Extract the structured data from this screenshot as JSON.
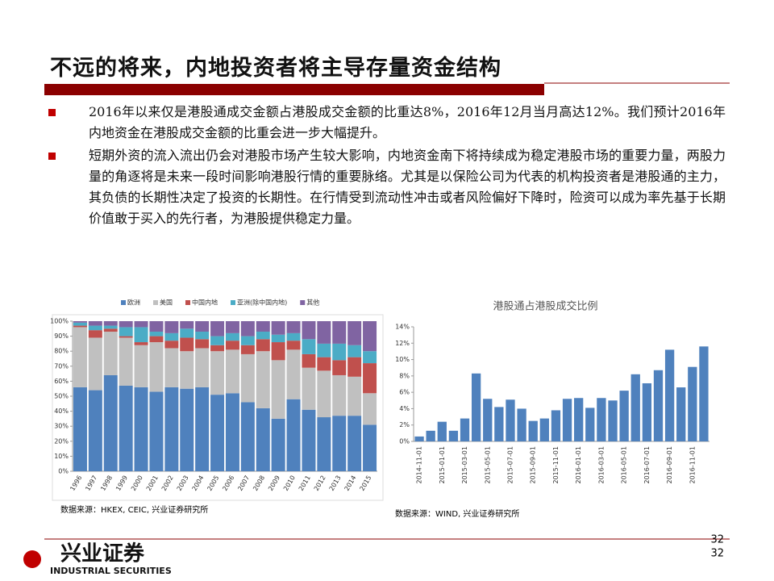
{
  "title": "不远的将来，内地投资者将主导存量资金结构",
  "bullets": [
    "2016年以来仅是港股通成交金额占港股成交金额的比重达8%，2016年12月当月高达12%。我们预计2016年内地资金在港股成交金额的比重会进一步大幅提升。",
    "短期外资的流入流出仍会对港股市场产生较大影响，内地资金南下将持续成为稳定港股市场的重要力量，两股力量的角逐将是未来一段时间影响港股行情的重要脉络。尤其是以保险公司为代表的机构投资者是港股通的主力，其负债的长期性决定了投资的长期性。在行情受到流动性冲击或者风险偏好下降时，险资可以成为率先基于长期价值敢于买入的先行者，为港股提供稳定力量。"
  ],
  "chart_data": [
    {
      "type": "bar",
      "stacked": true,
      "categories": [
        "1996",
        "1997",
        "1998",
        "1999",
        "2000",
        "2001",
        "2002",
        "2003",
        "2004",
        "2005",
        "2006",
        "2007",
        "2008",
        "2009",
        "2010",
        "2011",
        "2012",
        "2013",
        "2014",
        "2015"
      ],
      "series": [
        {
          "name": "欧洲",
          "color": "#4f81bd",
          "values": [
            56,
            54,
            64,
            57,
            56,
            53,
            56,
            55,
            56,
            51,
            52,
            46,
            42,
            35,
            48,
            41,
            36,
            37,
            37,
            31
          ]
        },
        {
          "name": "美国",
          "color": "#c0c0c0",
          "values": [
            40,
            35,
            29,
            32,
            28,
            33,
            26,
            25,
            26,
            29,
            29,
            32,
            38,
            39,
            33,
            28,
            31,
            27,
            26,
            21
          ]
        },
        {
          "name": "中国内地",
          "color": "#c0504d",
          "values": [
            1,
            5,
            2,
            1,
            2,
            4,
            5,
            9,
            6,
            4,
            6,
            6,
            8,
            12,
            6,
            9,
            9,
            10,
            13,
            20
          ]
        },
        {
          "name": "亚洲(除中国内地)",
          "color": "#4bacc6",
          "values": [
            2,
            3,
            2,
            6,
            10,
            3,
            5,
            6,
            5,
            6,
            5,
            6,
            5,
            5,
            5,
            10,
            9,
            11,
            8,
            8
          ]
        },
        {
          "name": "其他",
          "color": "#8064a2",
          "values": [
            1,
            3,
            3,
            4,
            4,
            7,
            8,
            5,
            7,
            10,
            8,
            10,
            7,
            9,
            8,
            12,
            15,
            15,
            16,
            20
          ]
        }
      ],
      "ylim": [
        0,
        100
      ],
      "yticks": [
        {
          "value": 0,
          "label": "0%"
        },
        {
          "value": 10,
          "label": "10%"
        },
        {
          "value": 20,
          "label": "20%"
        },
        {
          "value": 30,
          "label": "30%"
        },
        {
          "value": 40,
          "label": "40%"
        },
        {
          "value": 50,
          "label": "50%"
        },
        {
          "value": 60,
          "label": "60%"
        },
        {
          "value": 70,
          "label": "70%"
        },
        {
          "value": 80,
          "label": "80%"
        },
        {
          "value": 90,
          "label": "90%"
        },
        {
          "value": 100,
          "label": "100%"
        }
      ],
      "grid": false,
      "legend": "top",
      "source": "数据来源：HKEX, CEIC, 兴业证券研究所"
    },
    {
      "type": "bar",
      "title": "港股通占港股成交比例",
      "color": "#4f81bd",
      "categories": [
        "2014-11-01",
        null,
        "2015-01-01",
        null,
        "2015-03-01",
        null,
        "2015-05-01",
        null,
        "2015-07-01",
        null,
        "2015-09-01",
        null,
        "2015-11-01",
        null,
        "2016-01-01",
        null,
        "2016-03-01",
        null,
        "2016-05-01",
        null,
        "2016-07-01",
        null,
        "2016-09-01",
        null,
        "2016-11-01",
        null
      ],
      "values": [
        0.6,
        1.3,
        2.4,
        1.3,
        2.8,
        8.3,
        5.2,
        4.2,
        5.1,
        4.0,
        2.5,
        2.8,
        3.8,
        5.2,
        5.3,
        4.1,
        5.3,
        5.0,
        6.2,
        8.2,
        7.1,
        8.7,
        11.2,
        6.6,
        9.1,
        11.6
      ],
      "ylim": [
        0,
        14
      ],
      "yticks": [
        {
          "value": 0,
          "label": "0%"
        },
        {
          "value": 2,
          "label": "2%"
        },
        {
          "value": 4,
          "label": "4%"
        },
        {
          "value": 6,
          "label": "6%"
        },
        {
          "value": 8,
          "label": "8%"
        },
        {
          "value": 10,
          "label": "10%"
        },
        {
          "value": 12,
          "label": "12%"
        },
        {
          "value": 14,
          "label": "14%"
        }
      ],
      "grid": false,
      "source": "数据来源：WIND, 兴业证券研究所"
    }
  ],
  "page_number": "32",
  "logo": {
    "name": "兴业证券",
    "english": "INDUSTRIAL SECURITIES"
  }
}
